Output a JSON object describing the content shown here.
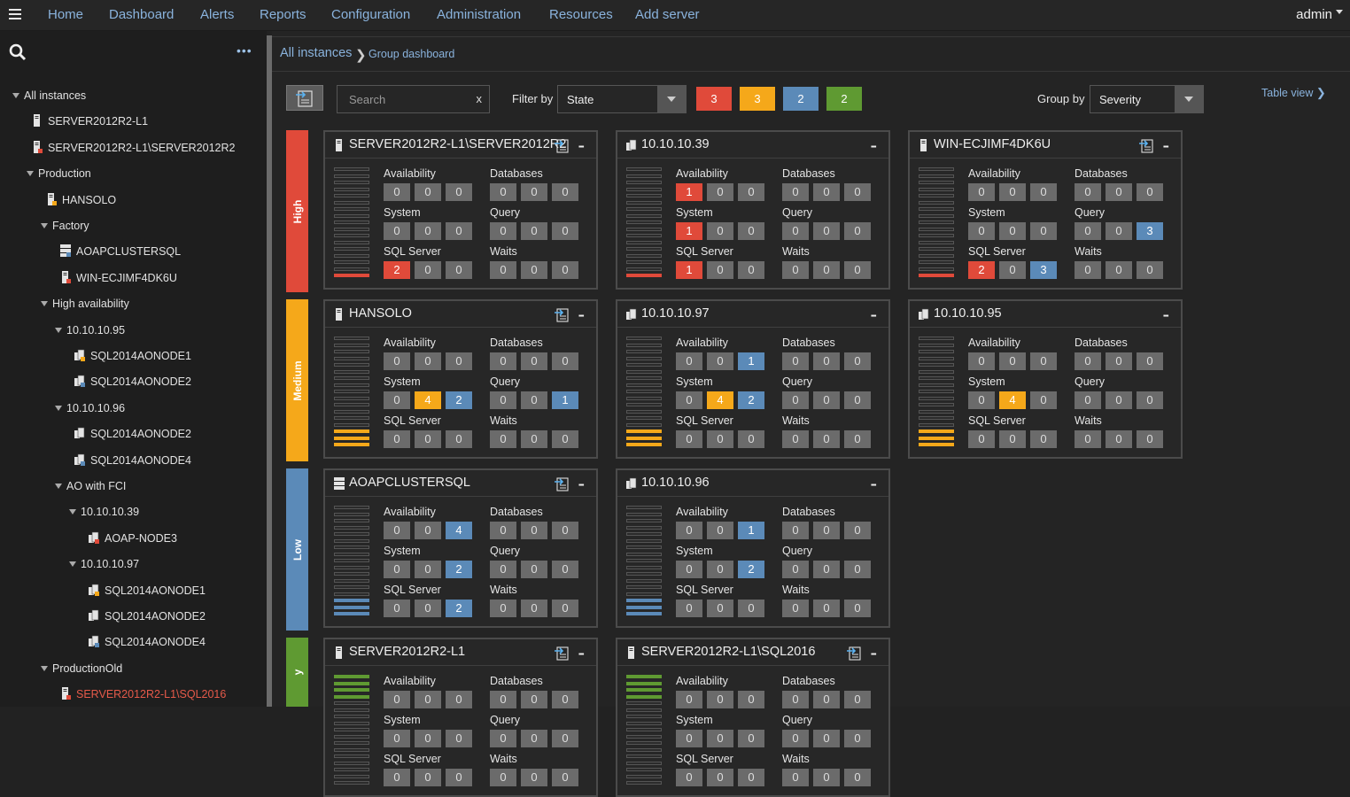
{
  "nav": {
    "items": [
      "Home",
      "Dashboard",
      "Alerts",
      "Reports",
      "Configuration",
      "Administration",
      "Resources",
      "Add server"
    ],
    "user": "admin"
  },
  "sidebar": {
    "more": "•••",
    "tree": [
      {
        "label": "All instances",
        "level": 0,
        "type": "group"
      },
      {
        "label": "SERVER2012R2-L1",
        "level": 1,
        "type": "server",
        "status": "none"
      },
      {
        "label": "SERVER2012R2-L1\\SERVER2012R2",
        "level": 1,
        "type": "server",
        "status": "red"
      },
      {
        "label": "Production",
        "level": 1,
        "type": "group"
      },
      {
        "label": "HANSOLO",
        "level": 2,
        "type": "server",
        "status": "yellow"
      },
      {
        "label": "Factory",
        "level": 2,
        "type": "group"
      },
      {
        "label": "AOAPCLUSTERSQL",
        "level": 3,
        "type": "cluster",
        "status": "blue"
      },
      {
        "label": "WIN-ECJIMF4DK6U",
        "level": 3,
        "type": "server",
        "status": "red"
      },
      {
        "label": "High availability",
        "level": 2,
        "type": "group"
      },
      {
        "label": "10.10.10.95",
        "level": 3,
        "type": "group"
      },
      {
        "label": "SQL2014AONODE1",
        "level": 4,
        "type": "ag",
        "status": "yellow"
      },
      {
        "label": "SQL2014AONODE2",
        "level": 4,
        "type": "ag",
        "status": "blue"
      },
      {
        "label": "10.10.10.96",
        "level": 3,
        "type": "group"
      },
      {
        "label": "SQL2014AONODE2",
        "level": 4,
        "type": "ag",
        "status": "none"
      },
      {
        "label": "SQL2014AONODE4",
        "level": 4,
        "type": "ag",
        "status": "blue"
      },
      {
        "label": "AO with FCI",
        "level": 3,
        "type": "group"
      },
      {
        "label": "10.10.10.39",
        "level": 4,
        "type": "group"
      },
      {
        "label": "AOAP-NODE3",
        "level": 5,
        "type": "ag",
        "status": "red"
      },
      {
        "label": "10.10.10.97",
        "level": 4,
        "type": "group"
      },
      {
        "label": "SQL2014AONODE1",
        "level": 5,
        "type": "ag",
        "status": "yellow"
      },
      {
        "label": "SQL2014AONODE2",
        "level": 5,
        "type": "ag",
        "status": "none"
      },
      {
        "label": "SQL2014AONODE4",
        "level": 5,
        "type": "ag",
        "status": "blue"
      },
      {
        "label": "ProductionOld",
        "level": 2,
        "type": "group"
      },
      {
        "label": "SERVER2012R2-L1\\SQL2016",
        "level": 3,
        "type": "server",
        "status": "red",
        "text": "red"
      }
    ]
  },
  "breadcrumb": {
    "root": "All instances",
    "current": "Group dashboard"
  },
  "toolbar": {
    "search_placeholder": "Search",
    "search_clear": "x",
    "filter_label": "Filter by",
    "filter_value": "State",
    "counts": [
      {
        "value": "3",
        "color": "#e04a3a"
      },
      {
        "value": "3",
        "color": "#f5a81a"
      },
      {
        "value": "2",
        "color": "#5b8ab8"
      },
      {
        "value": "2",
        "color": "#5f9a32"
      }
    ],
    "group_label": "Group by",
    "group_value": "Severity",
    "table_view": "Table view"
  },
  "colors": {
    "high": "#e04a3a",
    "medium": "#f5a81a",
    "low": "#5b8ab8",
    "ok": "#5f9a32",
    "zero": "#6b6b6b"
  },
  "bands": [
    {
      "label": "High",
      "color": "#e04a3a"
    },
    {
      "label": "Medium",
      "color": "#f5a81a"
    },
    {
      "label": "Low",
      "color": "#5b8ab8"
    },
    {
      "label": "y",
      "color": "#5f9a32"
    }
  ],
  "group_labels": [
    "Availability",
    "Databases",
    "System",
    "Query",
    "SQL Server",
    "Waits"
  ],
  "cards": [
    {
      "title": "SERVER2012R2-L1\\SERVER2012R2",
      "icon": "server-icon",
      "export": true,
      "level": "high",
      "vals": [
        [
          "0",
          "0",
          "0"
        ],
        [
          "0",
          "0",
          "0"
        ],
        [
          "0",
          "0",
          "0"
        ],
        [
          "0",
          "0",
          "0"
        ],
        [
          "2",
          "0",
          "0"
        ],
        [
          "0",
          "0",
          "0"
        ]
      ],
      "cols": [
        [
          "",
          "",
          ""
        ],
        [
          "",
          "",
          ""
        ],
        [
          "",
          "",
          ""
        ],
        [
          "",
          "",
          ""
        ],
        [
          "r",
          "",
          ""
        ],
        [
          "",
          "",
          ""
        ]
      ]
    },
    {
      "title": "10.10.10.39",
      "icon": "availability-group-icon",
      "export": false,
      "level": "high",
      "vals": [
        [
          "1",
          "0",
          "0"
        ],
        [
          "0",
          "0",
          "0"
        ],
        [
          "1",
          "0",
          "0"
        ],
        [
          "0",
          "0",
          "0"
        ],
        [
          "1",
          "0",
          "0"
        ],
        [
          "0",
          "0",
          "0"
        ]
      ],
      "cols": [
        [
          "r",
          "",
          ""
        ],
        [
          "",
          "",
          ""
        ],
        [
          "r",
          "",
          ""
        ],
        [
          "",
          "",
          ""
        ],
        [
          "r",
          "",
          ""
        ],
        [
          "",
          "",
          ""
        ]
      ]
    },
    {
      "title": "WIN-ECJIMF4DK6U",
      "icon": "server-icon",
      "export": true,
      "level": "high",
      "vals": [
        [
          "0",
          "0",
          "0"
        ],
        [
          "0",
          "0",
          "0"
        ],
        [
          "0",
          "0",
          "0"
        ],
        [
          "0",
          "0",
          "3"
        ],
        [
          "2",
          "0",
          "3"
        ],
        [
          "0",
          "0",
          "0"
        ]
      ],
      "cols": [
        [
          "",
          "",
          ""
        ],
        [
          "",
          "",
          ""
        ],
        [
          "",
          "",
          ""
        ],
        [
          "",
          "",
          "b"
        ],
        [
          "r",
          "",
          "b"
        ],
        [
          "",
          "",
          ""
        ]
      ]
    },
    {
      "title": "HANSOLO",
      "icon": "server-icon",
      "export": true,
      "level": "medium",
      "vals": [
        [
          "0",
          "0",
          "0"
        ],
        [
          "0",
          "0",
          "0"
        ],
        [
          "0",
          "4",
          "2"
        ],
        [
          "0",
          "0",
          "1"
        ],
        [
          "0",
          "0",
          "0"
        ],
        [
          "0",
          "0",
          "0"
        ]
      ],
      "cols": [
        [
          "",
          "",
          ""
        ],
        [
          "",
          "",
          ""
        ],
        [
          "",
          "y",
          "b"
        ],
        [
          "",
          "",
          "b"
        ],
        [
          "",
          "",
          ""
        ],
        [
          "",
          "",
          ""
        ]
      ]
    },
    {
      "title": "10.10.10.97",
      "icon": "availability-group-icon",
      "export": false,
      "level": "medium",
      "vals": [
        [
          "0",
          "0",
          "1"
        ],
        [
          "0",
          "0",
          "0"
        ],
        [
          "0",
          "4",
          "2"
        ],
        [
          "0",
          "0",
          "0"
        ],
        [
          "0",
          "0",
          "0"
        ],
        [
          "0",
          "0",
          "0"
        ]
      ],
      "cols": [
        [
          "",
          "",
          "b"
        ],
        [
          "",
          "",
          ""
        ],
        [
          "",
          "y",
          "b"
        ],
        [
          "",
          "",
          ""
        ],
        [
          "",
          "",
          ""
        ],
        [
          "",
          "",
          ""
        ]
      ]
    },
    {
      "title": "10.10.10.95",
      "icon": "availability-group-icon",
      "export": false,
      "level": "medium",
      "vals": [
        [
          "0",
          "0",
          "0"
        ],
        [
          "0",
          "0",
          "0"
        ],
        [
          "0",
          "4",
          "0"
        ],
        [
          "0",
          "0",
          "0"
        ],
        [
          "0",
          "0",
          "0"
        ],
        [
          "0",
          "0",
          "0"
        ]
      ],
      "cols": [
        [
          "",
          "",
          ""
        ],
        [
          "",
          "",
          ""
        ],
        [
          "",
          "y",
          ""
        ],
        [
          "",
          "",
          ""
        ],
        [
          "",
          "",
          ""
        ],
        [
          "",
          "",
          ""
        ]
      ]
    },
    {
      "title": "AOAPCLUSTERSQL",
      "icon": "cluster-icon",
      "export": true,
      "level": "low",
      "vals": [
        [
          "0",
          "0",
          "4"
        ],
        [
          "0",
          "0",
          "0"
        ],
        [
          "0",
          "0",
          "2"
        ],
        [
          "0",
          "0",
          "0"
        ],
        [
          "0",
          "0",
          "2"
        ],
        [
          "0",
          "0",
          "0"
        ]
      ],
      "cols": [
        [
          "",
          "",
          "b"
        ],
        [
          "",
          "",
          ""
        ],
        [
          "",
          "",
          "b"
        ],
        [
          "",
          "",
          ""
        ],
        [
          "",
          "",
          "b"
        ],
        [
          "",
          "",
          ""
        ]
      ]
    },
    {
      "title": "10.10.10.96",
      "icon": "availability-group-icon",
      "export": false,
      "level": "low",
      "vals": [
        [
          "0",
          "0",
          "1"
        ],
        [
          "0",
          "0",
          "0"
        ],
        [
          "0",
          "0",
          "2"
        ],
        [
          "0",
          "0",
          "0"
        ],
        [
          "0",
          "0",
          "0"
        ],
        [
          "0",
          "0",
          "0"
        ]
      ],
      "cols": [
        [
          "",
          "",
          "b"
        ],
        [
          "",
          "",
          ""
        ],
        [
          "",
          "",
          "b"
        ],
        [
          "",
          "",
          ""
        ],
        [
          "",
          "",
          ""
        ],
        [
          "",
          "",
          ""
        ]
      ]
    },
    {
      "title": "SERVER2012R2-L1",
      "icon": "server-icon",
      "export": true,
      "level": "ok",
      "vals": [
        [
          "0",
          "0",
          "0"
        ],
        [
          "0",
          "0",
          "0"
        ],
        [
          "0",
          "0",
          "0"
        ],
        [
          "0",
          "0",
          "0"
        ],
        [
          "0",
          "0",
          "0"
        ],
        [
          "0",
          "0",
          "0"
        ]
      ],
      "cols": [
        [
          "",
          "",
          ""
        ],
        [
          "",
          "",
          ""
        ],
        [
          "",
          "",
          ""
        ],
        [
          "",
          "",
          ""
        ],
        [
          "",
          "",
          ""
        ],
        [
          "",
          "",
          ""
        ]
      ]
    },
    {
      "title": "SERVER2012R2-L1\\SQL2016",
      "icon": "server-icon",
      "export": true,
      "level": "ok",
      "vals": [
        [
          "0",
          "0",
          "0"
        ],
        [
          "0",
          "0",
          "0"
        ],
        [
          "0",
          "0",
          "0"
        ],
        [
          "0",
          "0",
          "0"
        ],
        [
          "0",
          "0",
          "0"
        ],
        [
          "0",
          "0",
          "0"
        ]
      ],
      "cols": [
        [
          "",
          "",
          ""
        ],
        [
          "",
          "",
          ""
        ],
        [
          "",
          "",
          ""
        ],
        [
          "",
          "",
          ""
        ],
        [
          "",
          "",
          ""
        ],
        [
          "",
          "",
          ""
        ]
      ]
    }
  ]
}
